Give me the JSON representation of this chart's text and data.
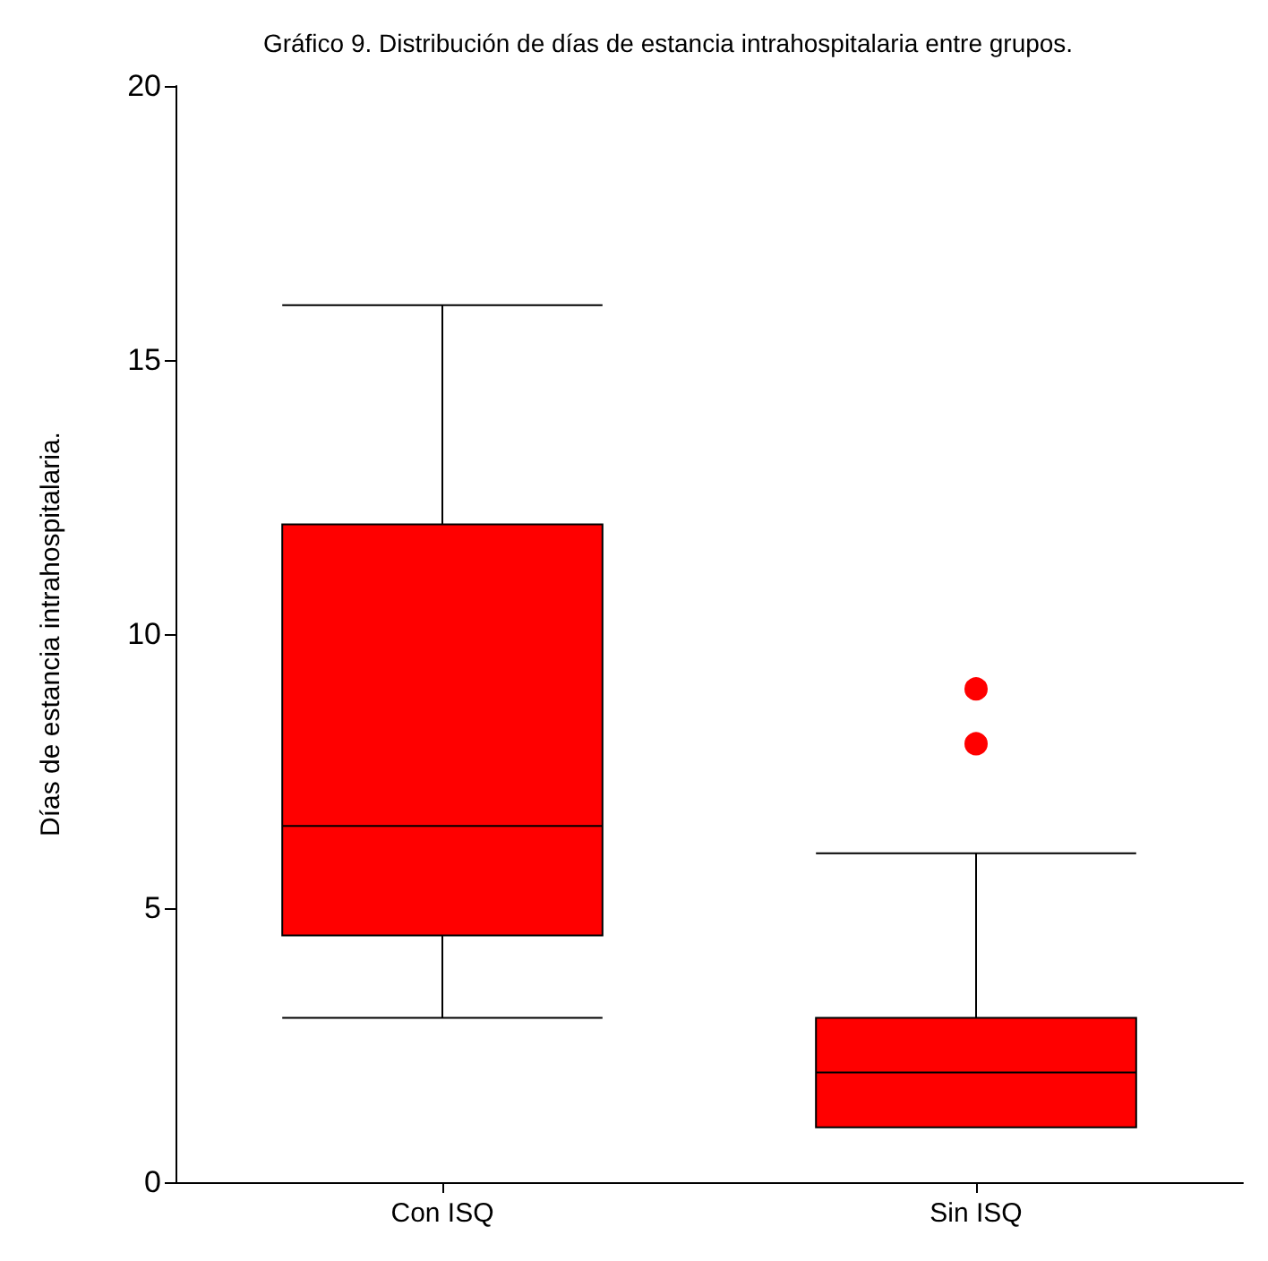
{
  "chart_data": {
    "type": "box",
    "title": "Gráfico 9. Distribución de días de estancia intrahospitalaria entre grupos.",
    "ylabel": "Días de estancia intrahospitalaria.",
    "categories": [
      "Con ISQ",
      "Sin ISQ"
    ],
    "color": "#ff0000",
    "boxes": [
      {
        "low": 3,
        "q1": 4.5,
        "median": 6.5,
        "q3": 12,
        "high": 16
      },
      {
        "low": 1,
        "q1": 1,
        "median": 2,
        "q3": 3,
        "high": 6,
        "outliers": [
          8,
          9
        ]
      }
    ],
    "ylim": [
      0,
      20
    ],
    "yticks": [
      0,
      5,
      10,
      15,
      20
    ],
    "grid": false
  }
}
